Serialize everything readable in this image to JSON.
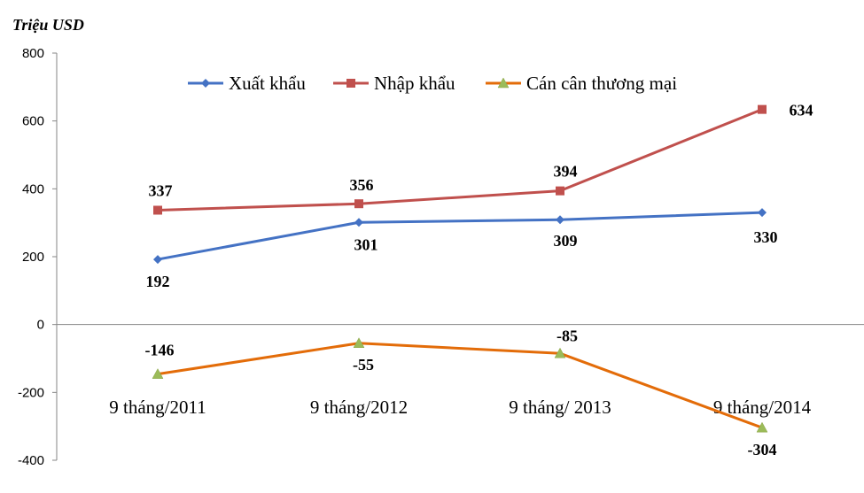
{
  "chart_data": {
    "type": "line",
    "ylabel": "Triệu USD",
    "ylim": [
      -400,
      800
    ],
    "yticks": [
      800,
      600,
      400,
      200,
      0,
      -200,
      -400
    ],
    "categories": [
      "9 tháng/2011",
      "9 tháng/2012",
      "9 tháng/ 2013",
      "9 tháng/2014"
    ],
    "grid": false,
    "legend_position": "top",
    "series": [
      {
        "name": "Xuất khẩu",
        "color": "#4472C4",
        "marker": "diamond",
        "values": [
          192,
          301,
          309,
          330
        ],
        "labels": [
          "192",
          "301",
          "309",
          "330"
        ]
      },
      {
        "name": "Nhập khẩu",
        "color": "#C0504D",
        "marker": "square",
        "values": [
          337,
          356,
          394,
          634
        ],
        "labels": [
          "337",
          "356",
          "394",
          "634"
        ]
      },
      {
        "name": "Cán cân thương mại",
        "color": "#E36C09",
        "marker": "triangle",
        "marker_color": "#9BBB59",
        "values": [
          -146,
          -55,
          -85,
          -304
        ],
        "labels": [
          "-146",
          "-55",
          "-85",
          "-304"
        ]
      }
    ]
  }
}
